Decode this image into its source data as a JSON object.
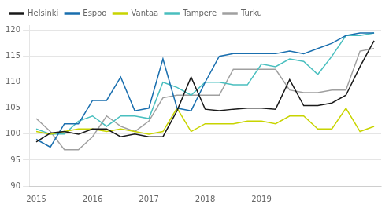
{
  "chart_data": {
    "type": "line",
    "categories": [
      "2015",
      null,
      null,
      null,
      "2016",
      null,
      null,
      null,
      "2017",
      null,
      null,
      null,
      "2018",
      null,
      null,
      null,
      "2019",
      null,
      null,
      null,
      null,
      null,
      null,
      null,
      null
    ],
    "series": [
      {
        "name": "Helsinki",
        "color": "#1a1a1a",
        "values": [
          98.5,
          100.2,
          100.5,
          100.0,
          101.0,
          101.0,
          99.5,
          100.0,
          99.5,
          99.5,
          104.5,
          111.0,
          104.8,
          104.5,
          104.8,
          105.0,
          105.0,
          104.8,
          110.5,
          105.5,
          105.5,
          106.0,
          107.5,
          113.0,
          118.0
        ]
      },
      {
        "name": "Espoo",
        "color": "#1a6faf",
        "values": [
          99.0,
          97.5,
          102.0,
          102.0,
          106.5,
          106.5,
          111.0,
          104.5,
          105.0,
          114.5,
          105.0,
          104.5,
          110.0,
          115.0,
          115.5,
          115.5,
          115.5,
          115.5,
          116.0,
          115.5,
          116.5,
          117.5,
          119.0,
          119.5,
          119.5
        ]
      },
      {
        "name": "Vantaa",
        "color": "#c8d400",
        "values": [
          100.5,
          100.0,
          100.5,
          101.0,
          101.0,
          100.5,
          101.0,
          100.5,
          100.0,
          100.5,
          105.0,
          100.5,
          102.0,
          102.0,
          102.0,
          102.5,
          102.5,
          102.0,
          103.5,
          103.5,
          101.0,
          101.0,
          105.0,
          100.5,
          101.5
        ]
      },
      {
        "name": "Tampere",
        "color": "#49bfbf",
        "values": [
          101.0,
          100.0,
          100.0,
          102.5,
          103.5,
          101.5,
          103.5,
          103.5,
          103.0,
          110.0,
          109.0,
          107.5,
          110.0,
          110.0,
          109.5,
          109.5,
          113.5,
          113.0,
          114.5,
          114.0,
          111.5,
          115.0,
          119.0,
          119.0,
          119.5
        ]
      },
      {
        "name": "Turku",
        "color": "#a0a0a0",
        "values": [
          103.0,
          100.5,
          97.0,
          97.0,
          99.5,
          103.5,
          101.5,
          100.5,
          102.5,
          107.0,
          107.5,
          107.5,
          107.5,
          107.5,
          112.5,
          112.5,
          112.5,
          112.5,
          108.5,
          108.0,
          108.0,
          108.5,
          108.5,
          116.0,
          116.5
        ]
      }
    ],
    "ylim": [
      90,
      121
    ],
    "yticks": [
      90,
      95,
      100,
      105,
      110,
      115,
      120
    ],
    "grid": true,
    "legend": "upper left"
  }
}
